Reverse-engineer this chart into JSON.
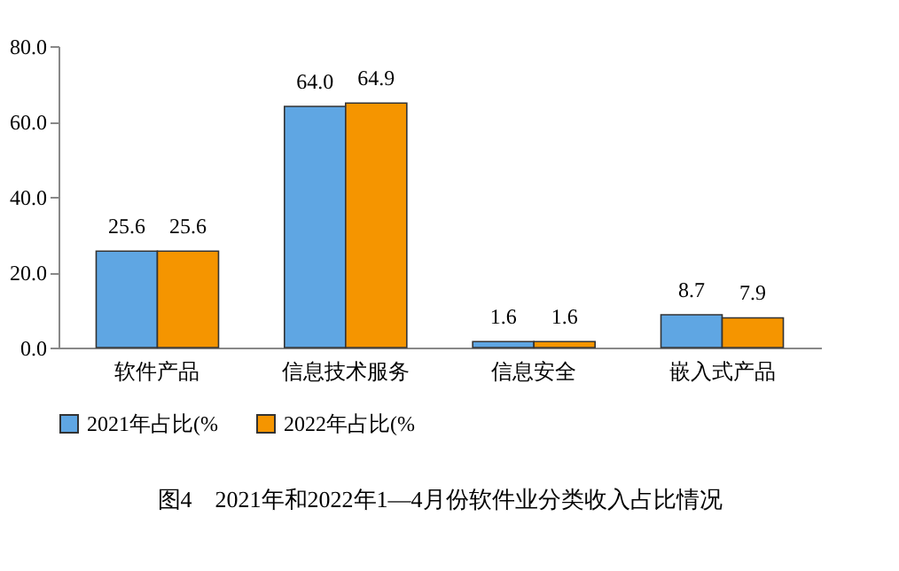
{
  "chart_data": {
    "type": "bar",
    "title": "图4　2021年和2022年1—4月份软件业分类收入占比情况",
    "categories": [
      "软件产品",
      "信息技术服务",
      "信息安全",
      "嵌入式产品"
    ],
    "series": [
      {
        "name": "2021年占比(%",
        "color": "#5fa6e3",
        "values": [
          25.6,
          64.0,
          1.6,
          8.7
        ],
        "value_labels": [
          "25.6",
          "64.0",
          "1.6",
          "8.7"
        ]
      },
      {
        "name": "2022年占比(%",
        "color": "#f59500",
        "values": [
          25.6,
          64.9,
          1.6,
          7.9
        ],
        "value_labels": [
          "25.6",
          "64.9",
          "1.6",
          "7.9"
        ]
      }
    ],
    "ylim": [
      0,
      80
    ],
    "yticks": [
      {
        "value": 0,
        "label": "0.0"
      },
      {
        "value": 20,
        "label": "20.0"
      },
      {
        "value": 40,
        "label": "40.0"
      },
      {
        "value": 60,
        "label": "60.0"
      },
      {
        "value": 80,
        "label": "80.0"
      }
    ],
    "legend": "bottom",
    "grid": false
  }
}
